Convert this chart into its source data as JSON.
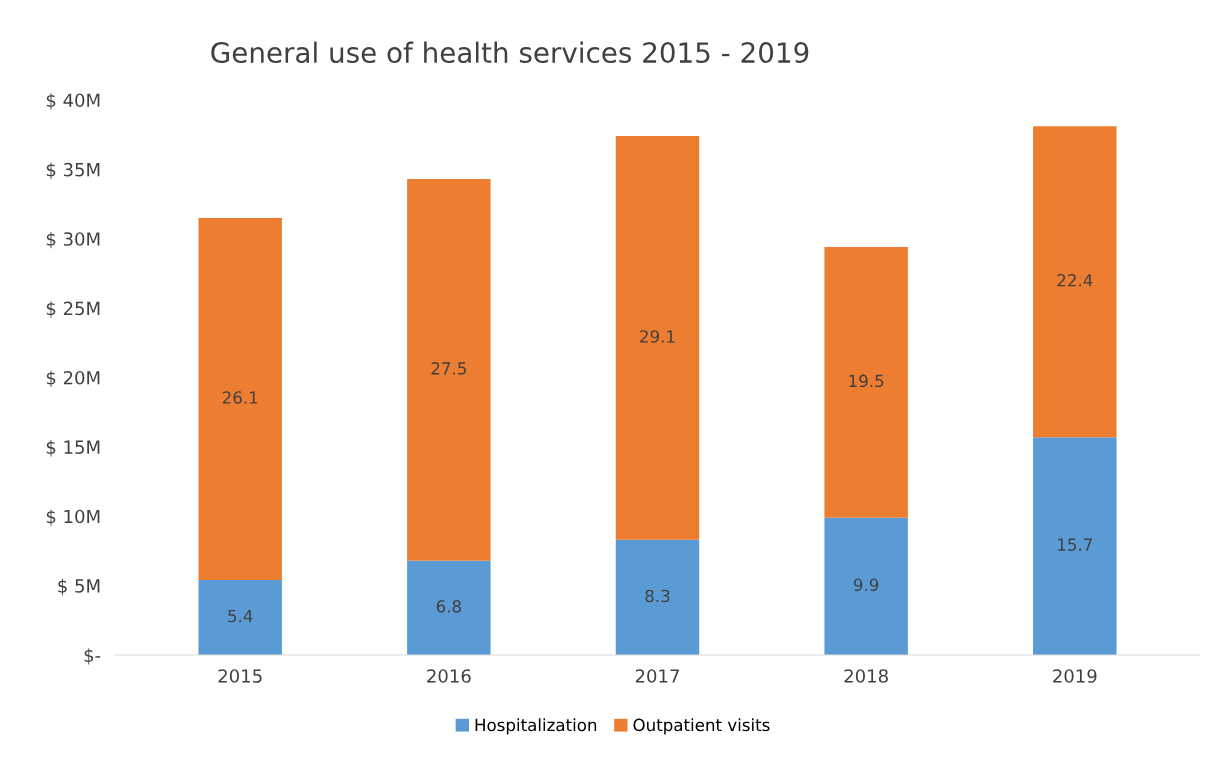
{
  "chart_data": {
    "type": "bar",
    "title": "General use of health services 2015 - 2019",
    "stacked": true,
    "categories": [
      "2015",
      "2016",
      "2017",
      "2018",
      "2019"
    ],
    "series": [
      {
        "name": "Hospitalization",
        "color": "#5b9bd5",
        "values": [
          5.4,
          6.8,
          8.3,
          9.9,
          15.7
        ]
      },
      {
        "name": "Outpatient visits",
        "color": "#ed7d31",
        "values": [
          26.1,
          27.5,
          29.1,
          19.5,
          22.4
        ]
      }
    ],
    "ylim": [
      0,
      40
    ],
    "yticks": [
      {
        "value": 0,
        "label": "$-"
      },
      {
        "value": 5,
        "label": "$ 5M"
      },
      {
        "value": 10,
        "label": "$ 10M"
      },
      {
        "value": 15,
        "label": "$ 15M"
      },
      {
        "value": 20,
        "label": "$ 20M"
      },
      {
        "value": 25,
        "label": "$ 25M"
      },
      {
        "value": 30,
        "label": "$ 30M"
      },
      {
        "value": 35,
        "label": "$ 35M"
      },
      {
        "value": 40,
        "label": "$ 40M"
      }
    ],
    "data_labels": true,
    "grid": false,
    "legend": "bottom"
  }
}
